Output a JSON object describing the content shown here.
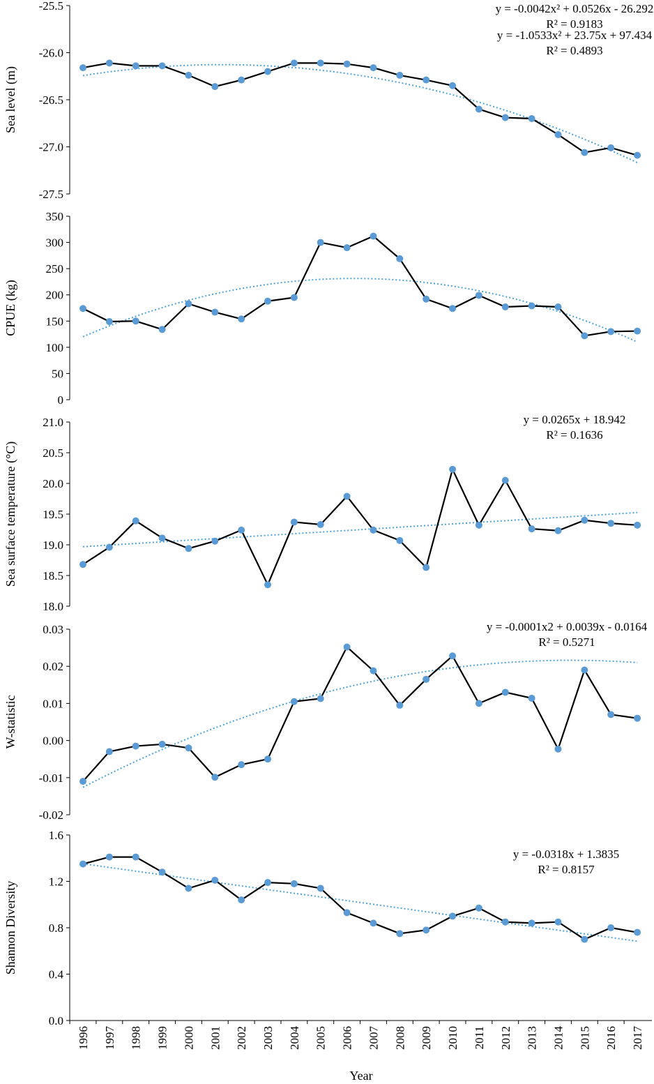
{
  "chart_data": [
    {
      "type": "line",
      "ylabel": "Sea level (m)",
      "ylim": [
        -27.5,
        -25.5
      ],
      "yticks": [
        "-25.5",
        "-26.0",
        "-26.5",
        "-27.0",
        "-27.5"
      ],
      "equation": "y = -0.0042x² + 0.0526x - 26.292",
      "r2": "R² = 0.9183",
      "trend": {
        "kind": "poly2",
        "coef": [
          -0.0042,
          0.0526,
          -26.292
        ]
      },
      "values": [
        -26.16,
        -26.11,
        -26.14,
        -26.14,
        -26.24,
        -26.36,
        -26.29,
        -26.2,
        -26.11,
        -26.11,
        -26.12,
        -26.16,
        -26.24,
        -26.29,
        -26.35,
        -26.6,
        -26.69,
        -26.7,
        -26.87,
        -27.06,
        -27.01,
        -27.09
      ]
    },
    {
      "type": "line",
      "ylabel": "CPUE (kg)",
      "ylim": [
        0,
        350
      ],
      "yticks": [
        "350",
        "300",
        "250",
        "200",
        "150",
        "100",
        "50",
        "0"
      ],
      "equation": "y = -1.0533x² + 23.75x + 97.434",
      "r2": "R² = 0.4893",
      "trend": {
        "kind": "poly2",
        "coef": [
          -1.0533,
          23.75,
          97.434
        ]
      },
      "values": [
        174,
        149,
        150,
        134,
        183,
        167,
        154,
        188,
        195,
        300,
        290,
        312,
        269,
        192,
        174,
        199,
        177,
        179,
        177,
        122,
        130,
        131
      ]
    },
    {
      "type": "line",
      "ylabel": "Sea surface temperature (°C)",
      "ylim": [
        18.0,
        21.0
      ],
      "yticks": [
        "21.0",
        "20.5",
        "20.0",
        "19.5",
        "19.0",
        "18.5",
        "18.0"
      ],
      "equation": "y = 0.0265x + 18.942",
      "r2": "R² = 0.1636",
      "trend": {
        "kind": "poly2",
        "coef": [
          0,
          0.0265,
          18.942
        ]
      },
      "values": [
        18.68,
        18.96,
        19.39,
        19.11,
        18.94,
        19.06,
        19.24,
        18.35,
        19.37,
        19.33,
        19.79,
        19.24,
        19.07,
        18.63,
        20.23,
        19.32,
        20.05,
        19.26,
        19.23,
        19.4,
        19.35,
        19.32
      ]
    },
    {
      "type": "line",
      "ylabel": "W-statistic",
      "ylim": [
        -0.02,
        0.03
      ],
      "yticks": [
        "0.03",
        "0.02",
        "0.01",
        "0.00",
        "-0.01",
        "-0.02"
      ],
      "equation": "y = -0.0001x2 + 0.0039x - 0.0164",
      "r2": "R² = 0.5271",
      "trend": {
        "kind": "poly2",
        "coef": [
          -0.0001,
          0.0039,
          -0.0164
        ]
      },
      "values": [
        -0.011,
        -0.003,
        -0.0015,
        -0.001,
        -0.002,
        -0.0099,
        -0.0065,
        -0.005,
        0.0105,
        0.0113,
        0.0252,
        0.0188,
        0.0095,
        0.0165,
        0.0228,
        0.01,
        0.013,
        0.0114,
        -0.0023,
        0.019,
        0.007,
        0.006
      ]
    },
    {
      "type": "line",
      "ylabel": "Shannon Diversity",
      "ylim": [
        0,
        1.6
      ],
      "yticks": [
        "1.6",
        "1.2",
        "0.8",
        "0.4",
        "0.0"
      ],
      "equation": "y = -0.0318x + 1.3835",
      "r2": "R² = 0.8157",
      "trend": {
        "kind": "poly2",
        "coef": [
          0,
          -0.0318,
          1.3835
        ]
      },
      "values": [
        1.35,
        1.41,
        1.41,
        1.28,
        1.14,
        1.21,
        1.04,
        1.19,
        1.18,
        1.14,
        0.93,
        0.84,
        0.75,
        0.78,
        0.9,
        0.97,
        0.85,
        0.84,
        0.85,
        0.7,
        0.8,
        0.76
      ]
    }
  ],
  "x": [
    "1996",
    "1997",
    "1998",
    "1999",
    "2000",
    "2001",
    "2002",
    "2003",
    "2004",
    "2005",
    "2006",
    "2007",
    "2008",
    "2009",
    "2010",
    "2011",
    "2012",
    "2013",
    "2014",
    "2015",
    "2016",
    "2017"
  ],
  "xlabel": "Year",
  "colors": {
    "line": "#000000",
    "marker": "#5b9bd5",
    "trend": "#4aa3d9"
  }
}
